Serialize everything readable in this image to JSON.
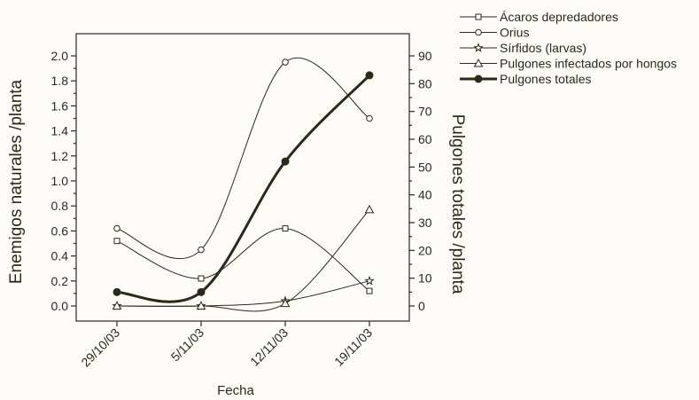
{
  "chart_data": {
    "type": "line",
    "categories": [
      "29/10/03",
      "5/11/03",
      "12/11/03",
      "19/11/03"
    ],
    "xlabel": "Fecha",
    "ylabel_left": "Enemigos naturales /planta",
    "ylabel_right": "Pulgones totales /planta",
    "ylim_left": [
      0,
      2.0
    ],
    "ylim_right": [
      0,
      90
    ],
    "yticks_left": [
      "0.0",
      "0.2",
      "0.4",
      "0.6",
      "0.8",
      "1.0",
      "1.2",
      "1.4",
      "1.6",
      "1.8",
      "2.0"
    ],
    "yticks_right": [
      "0",
      "10",
      "20",
      "30",
      "40",
      "50",
      "60",
      "70",
      "80",
      "90"
    ],
    "grid": false,
    "legend_position": "top-right",
    "series": [
      {
        "name": "Ácaros depredadores",
        "axis": "left",
        "marker": "square",
        "values": [
          0.52,
          0.22,
          0.62,
          0.12
        ]
      },
      {
        "name": "Orius",
        "axis": "left",
        "marker": "circle",
        "values": [
          0.62,
          0.45,
          1.95,
          1.5
        ]
      },
      {
        "name": "Sírfidos (larvas)",
        "axis": "left",
        "marker": "star",
        "values": [
          0.0,
          0.0,
          0.04,
          0.2
        ]
      },
      {
        "name": "Pulgones infectados por hongos",
        "axis": "left",
        "marker": "triangle",
        "values": [
          0.0,
          0.0,
          0.02,
          0.77
        ]
      },
      {
        "name": "Pulgones totales",
        "axis": "right",
        "marker": "filled-circle",
        "bold": true,
        "values": [
          5,
          5,
          52,
          83
        ]
      }
    ]
  }
}
